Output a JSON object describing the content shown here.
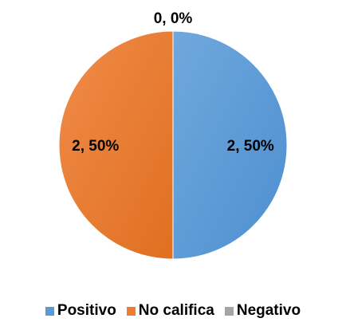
{
  "chart_data": {
    "type": "pie",
    "categories": [
      "Positivo",
      "No califica",
      "Negativo"
    ],
    "values": [
      2,
      2,
      0
    ],
    "data_labels": [
      "2, 50%",
      "2, 50%",
      "0, 0%"
    ],
    "colors": [
      "#5B9BD5",
      "#ED7D31",
      "#A5A5A5"
    ],
    "legend_position": "bottom",
    "title": ""
  }
}
